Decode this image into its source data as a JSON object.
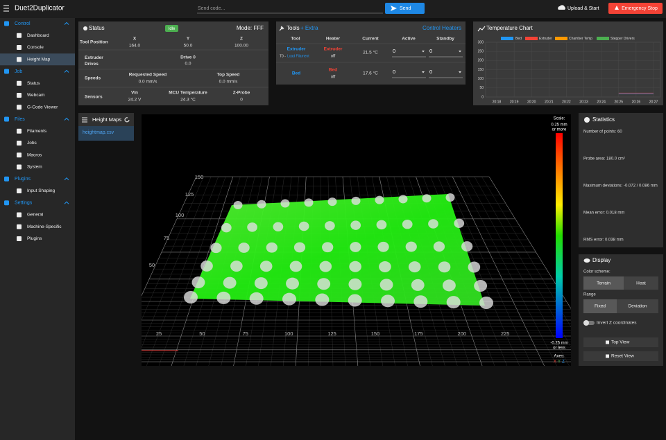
{
  "app": {
    "title": "Duet2Duplicator",
    "send_placeholder": "Send code...",
    "send_button": "Send",
    "upload_button": "Upload & Start",
    "emergency_button": "Emergency Stop"
  },
  "sidebar": {
    "sections": [
      {
        "label": "Control",
        "items": [
          "Dashboard",
          "Console",
          "Height Map"
        ]
      },
      {
        "label": "Job",
        "items": [
          "Status",
          "Webcam",
          "G-Code Viewer"
        ]
      },
      {
        "label": "Files",
        "items": [
          "Filaments",
          "Jobs",
          "Macros",
          "System"
        ]
      },
      {
        "label": "Plugins",
        "items": [
          "Input Shaping"
        ]
      },
      {
        "label": "Settings",
        "items": [
          "General",
          "Machine-Specific",
          "Plugins"
        ]
      }
    ]
  },
  "status": {
    "title": "Status",
    "state": "Idle",
    "mode": "Mode: FFF",
    "tool_position": {
      "label": "Tool Position",
      "axes": [
        "X",
        "Y",
        "Z"
      ],
      "values": [
        "164.0",
        "50.0",
        "100.00"
      ]
    },
    "extruder_drives": {
      "label": "Extruder Drives",
      "drive": "Drive 0",
      "value": "0.0"
    },
    "speeds": {
      "label": "Speeds",
      "requested_label": "Requested Speed",
      "requested": "0.0 mm/s",
      "top_label": "Top Speed",
      "top": "0.0 mm/s"
    },
    "sensors": {
      "label": "Sensors",
      "columns": [
        {
          "label": "Vin",
          "value": "24.2 V"
        },
        {
          "label": "MCU Temperature",
          "value": "24.3 °C"
        },
        {
          "label": "Z-Probe",
          "value": "0"
        }
      ]
    }
  },
  "tools": {
    "title": "Tools",
    "extra": "+ Extra",
    "control_heaters": "Control Heaters",
    "headers": [
      "Tool",
      "Heater",
      "Current",
      "Active",
      "Standby"
    ],
    "rows": [
      {
        "tool": "Extruder",
        "tool_prefix": "T0 -",
        "tool_action": "Load Filament",
        "heater": "Extruder",
        "heater_state": "off",
        "current": "21.5 °C",
        "active": "0",
        "standby": "0"
      },
      {
        "tool": "Bed",
        "heater": "Bed",
        "heater_state": "off",
        "current": "17.6 °C",
        "active": "0",
        "standby": "0"
      }
    ]
  },
  "temperature_chart": {
    "type": "line",
    "title": "Temperature Chart",
    "categories": [
      "20:18",
      "20:19",
      "20:20",
      "20:21",
      "20:22",
      "20:23",
      "20:24",
      "20:25",
      "20:26",
      "20:27"
    ],
    "series": [
      {
        "name": "Bed",
        "color": "#2196f3",
        "values": [
          null,
          null,
          null,
          null,
          null,
          null,
          null,
          17.6,
          17.6,
          17.6
        ]
      },
      {
        "name": "Extruder",
        "color": "#f44336",
        "values": [
          null,
          null,
          null,
          null,
          null,
          null,
          null,
          21.5,
          21.5,
          21.5
        ]
      },
      {
        "name": "Chamber Temp",
        "color": "#ff9800",
        "values": [
          null,
          null,
          null,
          null,
          null,
          null,
          null,
          null,
          null,
          null
        ]
      },
      {
        "name": "Stepper Drivers",
        "color": "#4caf50",
        "values": [
          null,
          null,
          null,
          null,
          null,
          null,
          null,
          null,
          null,
          null
        ]
      }
    ],
    "ylim": [
      0,
      300
    ],
    "yticks": [
      0,
      50,
      100,
      150,
      200,
      250,
      300
    ],
    "grid": true
  },
  "height_maps": {
    "title": "Height Maps",
    "files": [
      "heightmap.csv"
    ]
  },
  "heightmap_view": {
    "x_labels": [
      "25",
      "50",
      "75",
      "100",
      "125",
      "150",
      "175",
      "200",
      "225"
    ],
    "y_labels": [
      "50",
      "75",
      "100",
      "125",
      "150"
    ],
    "scale_title": "Scale:",
    "scale_max": [
      "0.25 mm",
      "or more"
    ],
    "scale_min": [
      "-0.25 mm",
      "or less"
    ],
    "axes_title": "Axes:",
    "axes": [
      "X",
      "Y",
      "Z"
    ]
  },
  "statistics": {
    "title": "Statistics",
    "lines": [
      "Number of points: 60",
      "Probe area: 180.0 cm²",
      "Maximum deviations: -0.072 / 0.086 mm",
      "Mean error: 0.018 mm",
      "RMS error: 0.038 mm"
    ]
  },
  "display": {
    "title": "Display",
    "color_scheme_label": "Color scheme:",
    "color_schemes": [
      "Terrain",
      "Heat"
    ],
    "range_label": "Range",
    "ranges": [
      "Fixed",
      "Deviation"
    ],
    "invert_label": "Invert Z coordinates",
    "top_view": "Top View",
    "reset_view": "Reset View"
  }
}
